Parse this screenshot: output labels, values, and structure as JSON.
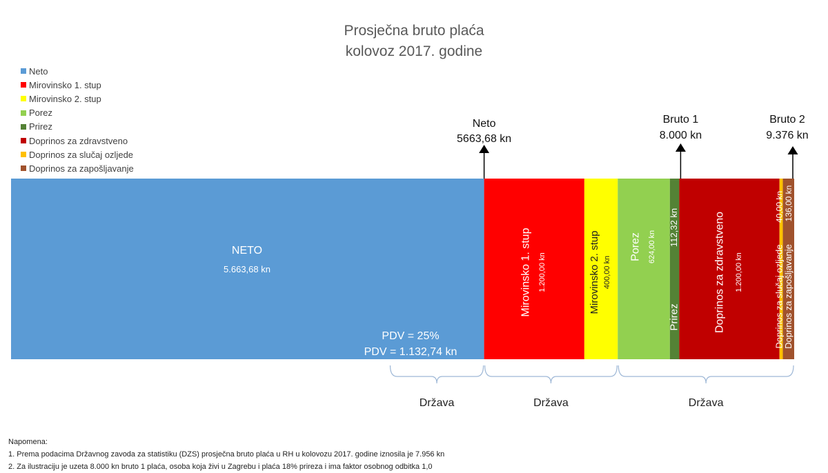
{
  "title_line1": "Prosječna bruto plaća",
  "title_line2": "kolovoz 2017. godine",
  "colors": {
    "neto": "#5B9BD5",
    "mirovinsko1": "#FF0000",
    "mirovinsko2": "#FFFF00",
    "porez": "#92D050",
    "prirez": "#548235",
    "zdravstveno": "#C00000",
    "ozljede": "#FFC000",
    "zaposljavanje": "#A0522D"
  },
  "legend": [
    {
      "label": "Neto",
      "color": "#5B9BD5"
    },
    {
      "label": "Mirovinsko 1. stup",
      "color": "#FF0000"
    },
    {
      "label": "Mirovinsko 2. stup",
      "color": "#FFFF00"
    },
    {
      "label": "Porez",
      "color": "#92D050"
    },
    {
      "label": "Prirez",
      "color": "#548235"
    },
    {
      "label": "Doprinos za zdravstveno",
      "color": "#C00000"
    },
    {
      "label": "Doprinos za slučaj ozljede",
      "color": "#FFC000"
    },
    {
      "label": "Doprinos za zapošljavanje",
      "color": "#A0522D"
    }
  ],
  "chart_data": {
    "type": "bar",
    "orientation": "horizontal-stacked",
    "total": 9376,
    "segments": [
      {
        "key": "neto",
        "value": 5663.68,
        "label": "NETO",
        "value_label": "5.663,68 kn",
        "color": "#5B9BD5"
      },
      {
        "key": "mirovinsko1",
        "value": 1200.0,
        "label": "Mirovinsko 1. stup",
        "value_label": "1.200,00 kn",
        "color": "#FF0000"
      },
      {
        "key": "mirovinsko2",
        "value": 400.0,
        "label": "Mirovinsko 2. stup",
        "value_label": "400,00 kn",
        "color": "#FFFF00"
      },
      {
        "key": "porez",
        "value": 624.0,
        "label": "Porez",
        "value_label": "624,00 kn",
        "color": "#92D050"
      },
      {
        "key": "prirez",
        "value": 112.32,
        "label": "Prirez",
        "value_label": "112,32 kn",
        "color": "#548235"
      },
      {
        "key": "zdravstveno",
        "value": 1200.0,
        "label": "Doprinos za zdravstveno",
        "value_label": "1.200,00 kn",
        "color": "#C00000"
      },
      {
        "key": "ozljede",
        "value": 40.0,
        "label": "Doprinos za slučaj ozljede",
        "value_label": "40,00 kn",
        "color": "#FFC000"
      },
      {
        "key": "zaposljavanje",
        "value": 136.0,
        "label": "Doprinos za zapošljavanje",
        "value_label": "136,00 kn",
        "color": "#A0522D"
      }
    ],
    "pdv_rate_label": "PDV = 25%",
    "pdv_amount_label": "PDV = 1.132,74 kn",
    "markers": [
      {
        "line1": "Neto",
        "line2": "5663,68 kn",
        "value": 5663.68
      },
      {
        "line1": "Bruto 1",
        "line2": "8.000 kn",
        "value": 8000
      },
      {
        "line1": "Bruto 2",
        "line2": "9.376 kn",
        "value": 9376
      }
    ],
    "brackets": [
      {
        "label": "Država",
        "from": 4530.94,
        "to": 5663.68
      },
      {
        "label": "Država",
        "from": 5663.68,
        "to": 7263.68
      },
      {
        "label": "Država",
        "from": 7263.68,
        "to": 9376
      }
    ]
  },
  "note_title": "Napomena:",
  "note_1": "1. Prema podacima Državnog zavoda za statistiku (DZS) prosječna bruto plaća u RH u kolovozu 2017. godine iznosila je 7.956 kn",
  "note_2": "2. Za ilustraciju je uzeta 8.000 kn bruto 1 plaća, osoba koja živi u Zagrebu i plaća 18% prireza i ima faktor osobnog odbitka 1,0"
}
